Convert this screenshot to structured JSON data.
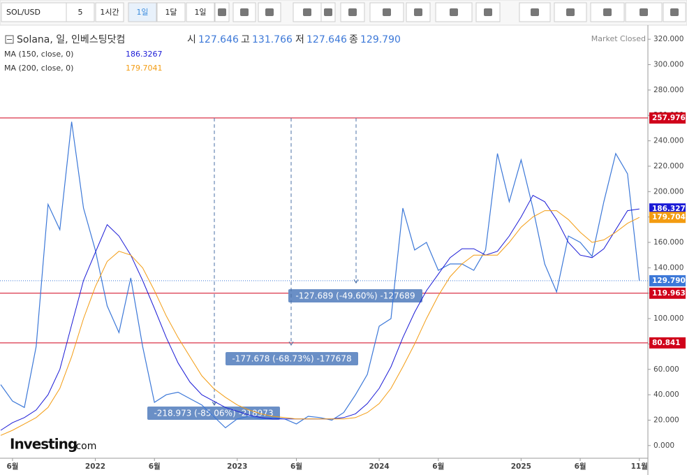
{
  "toolbar": {
    "symbol": "SOL/USD",
    "buttons": [
      "5",
      "1시간",
      "1일",
      "1달",
      "1일"
    ]
  },
  "header": {
    "name": "Solana, 일, 인베스팅닷컴",
    "ohlc": [
      [
        "시",
        "127.646"
      ],
      [
        "고",
        "131.766"
      ],
      [
        "저",
        "127.646"
      ],
      [
        "종",
        "129.790"
      ]
    ],
    "status": "Market Closed"
  },
  "logo": {
    "brand": "Investing",
    "suffix": ".com"
  },
  "chart_data": {
    "type": "line",
    "x": [
      "2021-05",
      "2021-06",
      "2021-07",
      "2021-08",
      "2021-09",
      "2021-10",
      "2021-11",
      "2021-12",
      "2022-01",
      "2022-02",
      "2022-03",
      "2022-04",
      "2022-05",
      "2022-06",
      "2022-07",
      "2022-08",
      "2022-09",
      "2022-10",
      "2022-11",
      "2022-12",
      "2023-01",
      "2023-02",
      "2023-03",
      "2023-04",
      "2023-05",
      "2023-06",
      "2023-07",
      "2023-08",
      "2023-09",
      "2023-10",
      "2023-11",
      "2023-12",
      "2024-01",
      "2024-02",
      "2024-03",
      "2024-04",
      "2024-05",
      "2024-06",
      "2024-07",
      "2024-08",
      "2024-09",
      "2024-10",
      "2024-11",
      "2024-12",
      "2025-01",
      "2025-02",
      "2025-03",
      "2025-04",
      "2025-05",
      "2025-06",
      "2025-07",
      "2025-08",
      "2025-09",
      "2025-10",
      "2025-11"
    ],
    "series": [
      {
        "name": "Solana, 일, 인베스팅닷컴",
        "color": "#3c78d8",
        "values": [
          48,
          35,
          30,
          78,
          190,
          170,
          255,
          187,
          154,
          110,
          89,
          132,
          78,
          34,
          40,
          42,
          37,
          32,
          23,
          14,
          21,
          23,
          21,
          22,
          21,
          17,
          23,
          22,
          20,
          26,
          40,
          56,
          94,
          100,
          187,
          154,
          160,
          138,
          143,
          143,
          138,
          154,
          230,
          192,
          225,
          187,
          143,
          121,
          165,
          160,
          149,
          192,
          230,
          214,
          129.79
        ]
      },
      {
        "name": "MA (150, close, 0)",
        "color": "#1a1ad6",
        "legend_value": "186.3267",
        "values": [
          12,
          18,
          22,
          28,
          40,
          60,
          95,
          130,
          152,
          174,
          165,
          150,
          130,
          108,
          85,
          65,
          50,
          40,
          35,
          30,
          27,
          24,
          22,
          21,
          21,
          21,
          21,
          21,
          21,
          22,
          25,
          33,
          45,
          62,
          85,
          105,
          122,
          135,
          148,
          155,
          155,
          150,
          153,
          165,
          180,
          197,
          192,
          178,
          160,
          150,
          148,
          155,
          170,
          185,
          186.327
        ]
      },
      {
        "name": "MA (200, close, 0)",
        "color": "#f39c12",
        "legend_value": "179.7041",
        "values": [
          8,
          12,
          17,
          22,
          30,
          45,
          70,
          100,
          125,
          145,
          153,
          150,
          140,
          122,
          102,
          85,
          70,
          55,
          45,
          38,
          32,
          28,
          25,
          23,
          22,
          21,
          21,
          21,
          21,
          21,
          22,
          26,
          33,
          45,
          62,
          80,
          100,
          118,
          133,
          143,
          150,
          150,
          150,
          160,
          172,
          180,
          185,
          185,
          178,
          168,
          160,
          162,
          168,
          175,
          179.704
        ]
      }
    ],
    "ylim": [
      -10,
      330
    ],
    "yticks": [
      {
        "value": 0,
        "label": "0.000"
      },
      {
        "value": 20,
        "label": "20.000"
      },
      {
        "value": 40,
        "label": "40.000"
      },
      {
        "value": 60,
        "label": "60.000"
      },
      {
        "value": 80,
        "label": "80.000"
      },
      {
        "value": 100,
        "label": "100.000"
      },
      {
        "value": 120,
        "label": "120.000"
      },
      {
        "value": 140,
        "label": "140.000"
      },
      {
        "value": 160,
        "label": "160.000"
      },
      {
        "value": 180,
        "label": "180.000"
      },
      {
        "value": 200,
        "label": "200.000"
      },
      {
        "value": 220,
        "label": "220.000"
      },
      {
        "value": 240,
        "label": "240.000"
      },
      {
        "value": 260,
        "label": "260.000"
      },
      {
        "value": 280,
        "label": "280.000"
      },
      {
        "value": 300,
        "label": "300.000"
      },
      {
        "value": 320,
        "label": "320.000"
      }
    ],
    "xticks": [
      {
        "value": "2021-06",
        "label": "6월"
      },
      {
        "value": "2022-01",
        "label": "2022"
      },
      {
        "value": "2022-06",
        "label": "6월"
      },
      {
        "value": "2023-01",
        "label": "2023"
      },
      {
        "value": "2023-06",
        "label": "6월"
      },
      {
        "value": "2024-01",
        "label": "2024"
      },
      {
        "value": "2024-06",
        "label": "6월"
      },
      {
        "value": "2025-01",
        "label": "2025"
      },
      {
        "value": "2025-06",
        "label": "6월"
      },
      {
        "value": "2025-11",
        "label": "11월"
      }
    ],
    "hlines": [
      257.976,
      119.963,
      80.841
    ],
    "hline_color": "#d0021b",
    "last_price": {
      "value": 129.79,
      "label": "129.790"
    },
    "ma_tags": [
      186.327,
      179.704
    ],
    "measurements": [
      "-127.689 (-49.60%) -127689",
      "-177.678 (-68.73%) -177678",
      "-218.973 (-85.06%) -218973"
    ]
  }
}
